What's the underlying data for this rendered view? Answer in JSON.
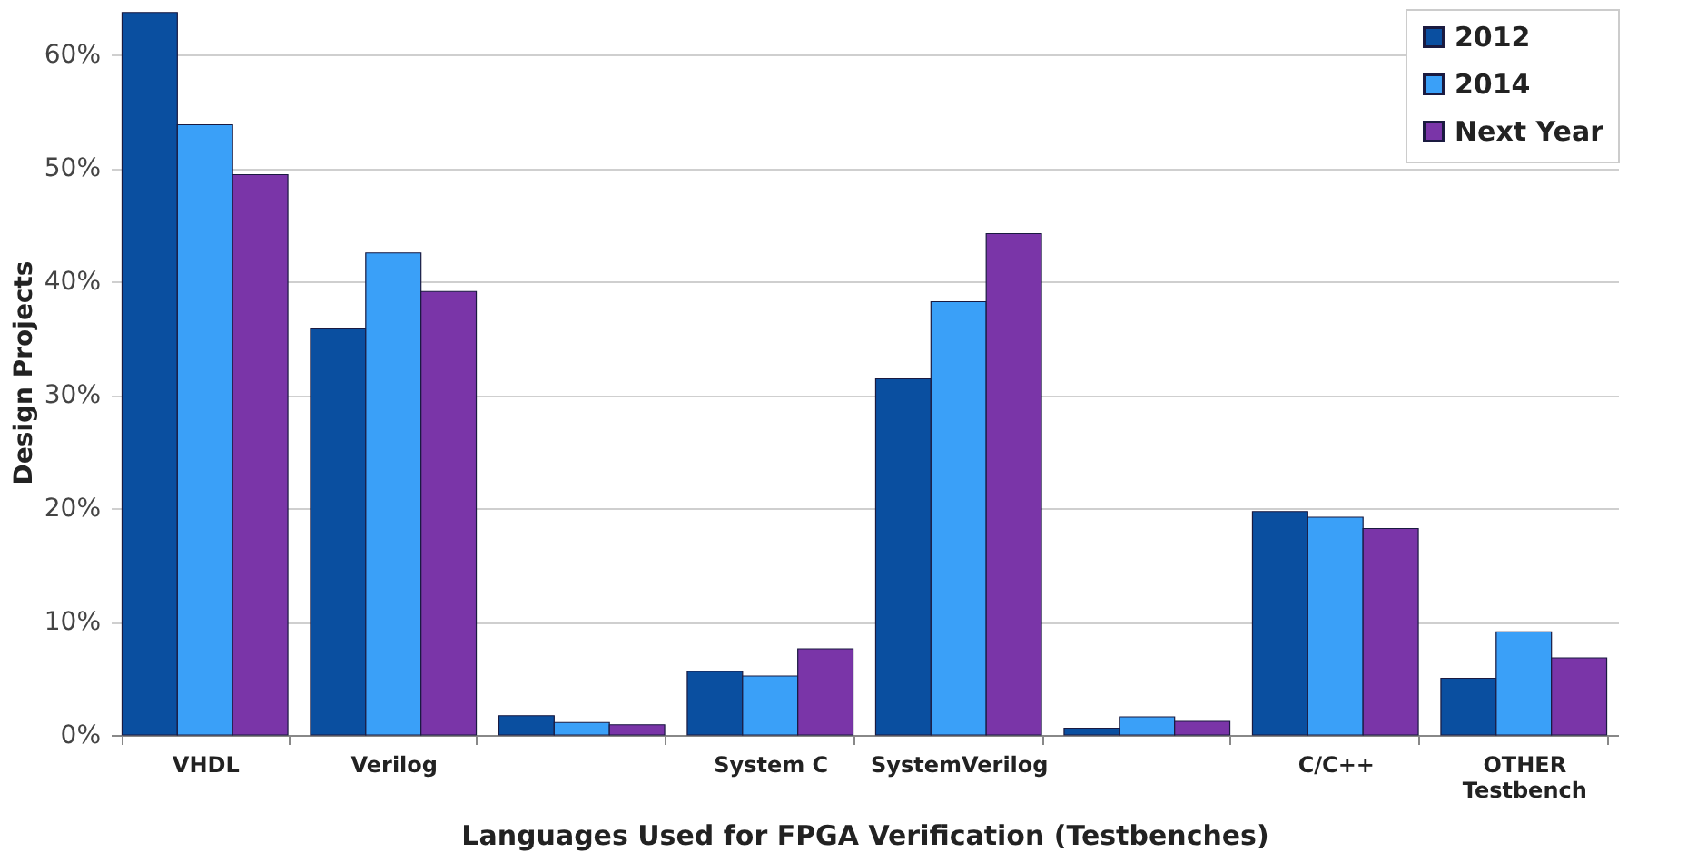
{
  "chart_data": {
    "type": "bar",
    "xlabel": "Languages Used for FPGA Verification (Testbenches)",
    "ylabel": "Design Projects",
    "categories": [
      "VHDL",
      "Verilog",
      null,
      "System C",
      "SystemVerilog",
      null,
      "C/C++",
      "OTHER Testbench"
    ],
    "series": [
      {
        "name": "2012",
        "color": "#0a4fa0",
        "values": [
          63.7,
          35.8,
          1.7,
          5.6,
          31.4,
          0.6,
          19.7,
          5.0
        ]
      },
      {
        "name": "2014",
        "color": "#3aa0f8",
        "values": [
          53.8,
          42.5,
          1.1,
          5.2,
          38.2,
          1.6,
          19.2,
          9.1
        ]
      },
      {
        "name": "Next Year",
        "color": "#7a35a8",
        "values": [
          49.4,
          39.1,
          0.9,
          7.6,
          44.2,
          1.2,
          18.2,
          6.8
        ]
      }
    ],
    "ylim": [
      0,
      64
    ],
    "yticks": [
      {
        "value": 0,
        "label": "0%"
      },
      {
        "value": 10,
        "label": "10%"
      },
      {
        "value": 20,
        "label": "20%"
      },
      {
        "value": 30,
        "label": "30%"
      },
      {
        "value": 40,
        "label": "40%"
      },
      {
        "value": 50,
        "label": "50%"
      },
      {
        "value": 60,
        "label": "60%"
      }
    ],
    "grid": "y",
    "legend": "top right"
  }
}
